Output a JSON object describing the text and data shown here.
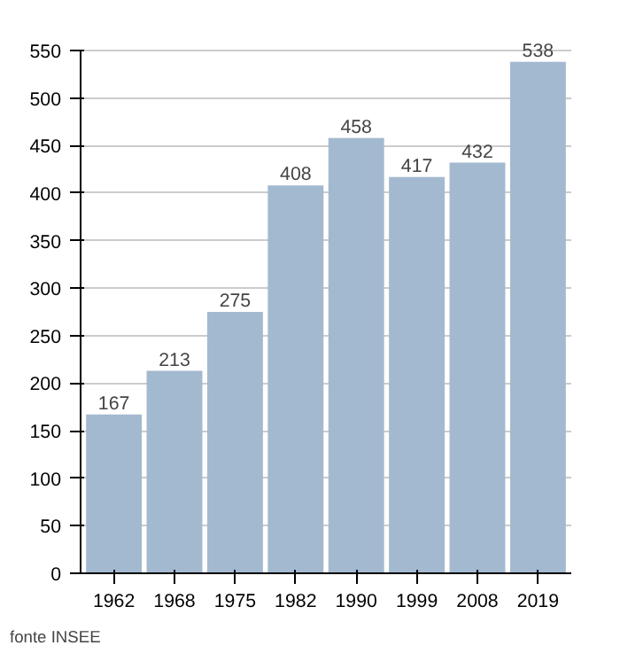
{
  "chart_data": {
    "type": "bar",
    "categories": [
      "1962",
      "1968",
      "1975",
      "1982",
      "1990",
      "1999",
      "2008",
      "2019"
    ],
    "values": [
      167,
      213,
      275,
      408,
      458,
      417,
      432,
      538
    ],
    "color": "#a3b9d0",
    "ylim": [
      0,
      550
    ],
    "yticks": [
      0,
      50,
      100,
      150,
      200,
      250,
      300,
      350,
      400,
      450,
      500,
      550
    ],
    "grid": "y",
    "data_labels": true,
    "annotations": [
      "fonte INSEE"
    ]
  }
}
